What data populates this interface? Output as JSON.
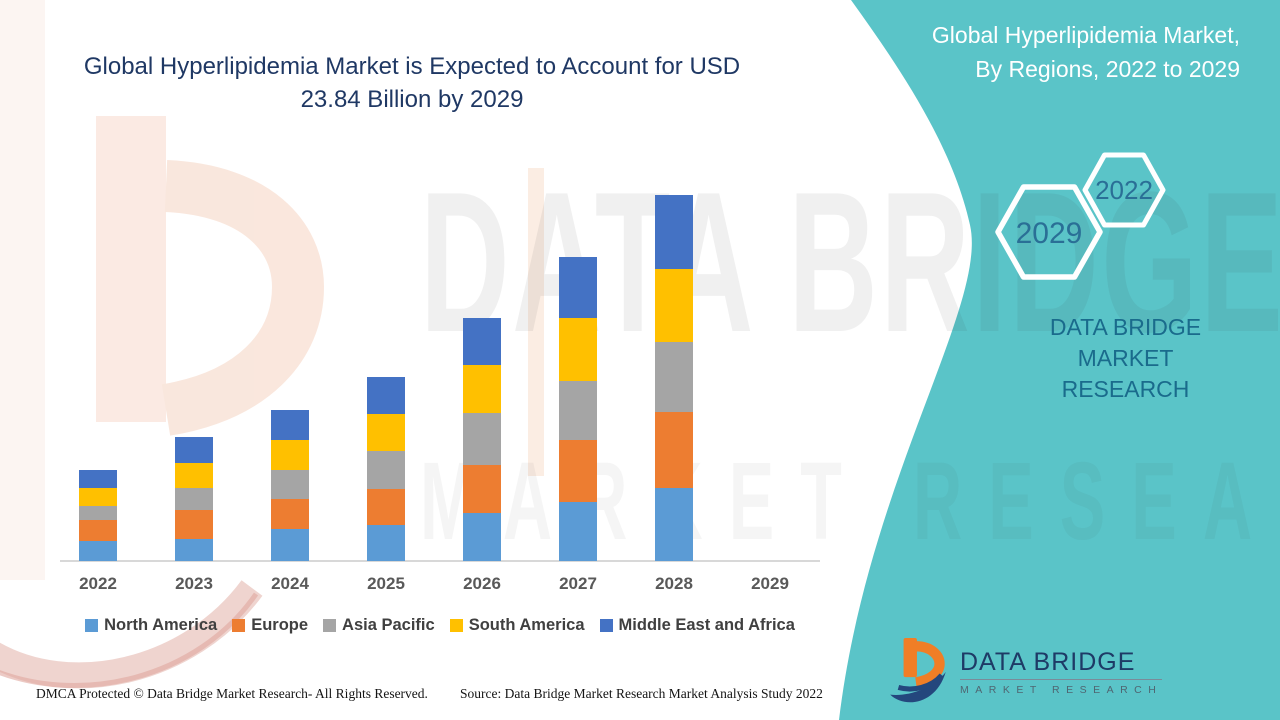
{
  "title": {
    "line1": "Global Hyperlipidemia Market is Expected to Account for USD",
    "line2": "23.84 Billion by 2029"
  },
  "side_panel": {
    "heading_line1": "Global Hyperlipidemia Market,",
    "heading_line2": "By Regions, 2022 to 2029",
    "hex_top_label": "2022",
    "hex_bottom_label": "2029",
    "caption_line1": "DATA BRIDGE MARKET",
    "caption_line2": "RESEARCH"
  },
  "watermark": {
    "line1": "DATA BRIDGE",
    "line2": "MARKET RESEARCH"
  },
  "logo": {
    "title": "DATA BRIDGE",
    "subtitle": "MARKET RESEARCH"
  },
  "footer": {
    "left": "DMCA Protected © Data Bridge Market Research- All Rights Reserved.",
    "right": "Source: Data Bridge Market Research Market Analysis Study 2022"
  },
  "colors": {
    "teal_panel": "#5AC4C8",
    "title_text": "#1F3864",
    "panel_text": "#FFFFFF",
    "hexagon_text": "#2A6F96",
    "brand_caption": "#1A6B8C",
    "axis_label": "#595959",
    "legend_text": "#404040",
    "logo_orange": "#F07E26",
    "logo_navy": "#24477D"
  },
  "chart_data": {
    "type": "bar",
    "stacked": true,
    "title": "Global Hyperlipidemia Market is Expected to Account for USD 23.84 Billion by 2029",
    "xlabel": "",
    "ylabel": "",
    "units": "relative bar heights (value axis not shown); title anchors 2029 total at USD 23.84 Billion",
    "legend_position": "bottom",
    "grid": false,
    "categories": [
      "2022",
      "2023",
      "2024",
      "2025",
      "2026",
      "2027",
      "2028",
      "2029"
    ],
    "series": [
      {
        "name": "North America",
        "color": "#5B9BD5",
        "values": [
          20,
          22,
          32,
          36,
          48,
          59,
          73,
          0
        ]
      },
      {
        "name": "Europe",
        "color": "#ED7D31",
        "values": [
          21,
          29,
          30,
          36,
          48,
          62,
          76,
          0
        ]
      },
      {
        "name": "Asia Pacific",
        "color": "#A5A5A5",
        "values": [
          14,
          22,
          29,
          38,
          52,
          59,
          70,
          0
        ]
      },
      {
        "name": "South America",
        "color": "#FFC000",
        "values": [
          18,
          25,
          30,
          37,
          48,
          63,
          73,
          0
        ]
      },
      {
        "name": "Middle East and Africa",
        "color": "#4472C4",
        "values": [
          18,
          26,
          30,
          37,
          47,
          61,
          74,
          0
        ]
      }
    ]
  }
}
